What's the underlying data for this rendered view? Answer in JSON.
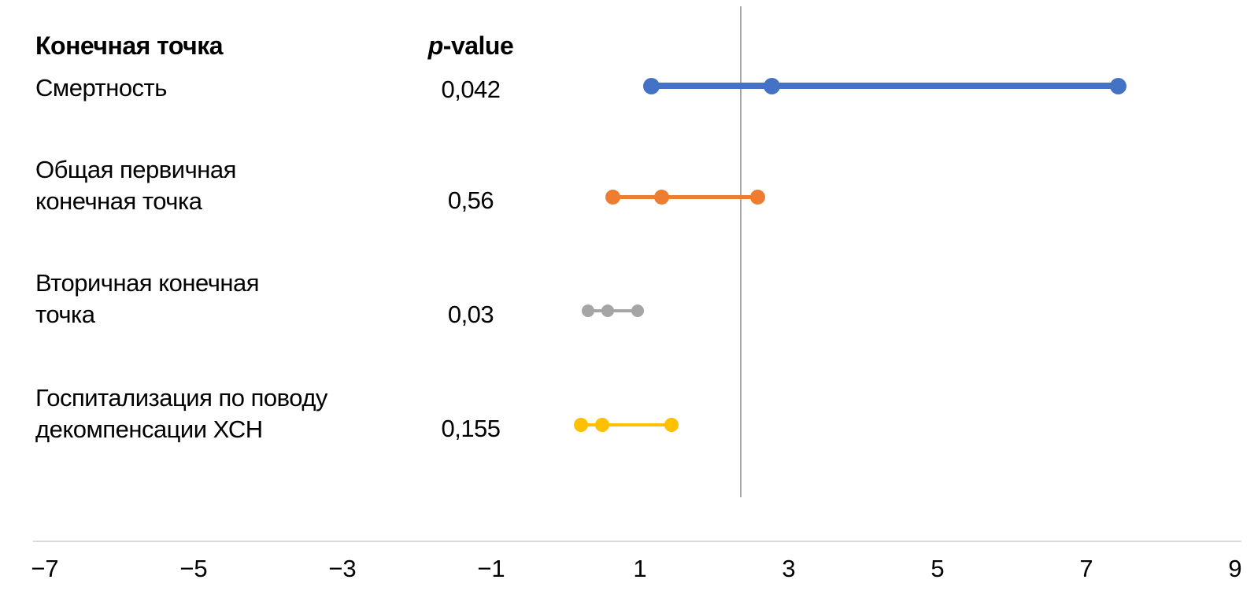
{
  "table": {
    "header": {
      "endpoint_col": "Конечная точка",
      "p_col_italic": "p",
      "p_col_rest": "-value"
    },
    "rows": [
      {
        "label": "Смертность",
        "p_value": "0,042"
      },
      {
        "label": "Общая первичная\nконечная точка",
        "p_value": "0,56"
      },
      {
        "label": "Вторичная конечная\nточка",
        "p_value": "0,03"
      },
      {
        "label": "Госпитализация по поводу\nдекомпенсации ХСН",
        "p_value": "0,155"
      }
    ]
  },
  "chart_data": {
    "type": "scatter",
    "subtype": "forest-plot-horizontal",
    "title": "",
    "xlabel": "",
    "ylabel": "",
    "grid": false,
    "legend": false,
    "x_axis": {
      "range": [
        -7.2,
        9.2
      ],
      "ticks": [
        -7,
        -5,
        -3,
        -1,
        1,
        3,
        5,
        7,
        9
      ],
      "tick_labels": [
        "−7",
        "−5",
        "−3",
        "−1",
        "1",
        "3",
        "5",
        "7",
        "9"
      ]
    },
    "reference_line": {
      "x_value": 2.35,
      "color": "#A6A6A6"
    },
    "axis_line_color": "#D9D9D9",
    "text_color": "#000000",
    "series": [
      {
        "name": "Смертность",
        "p_value": "0,042",
        "color": "#4472C4",
        "ci_low": 1.15,
        "estimate": 2.77,
        "ci_high": 7.43
      },
      {
        "name": "Общая первичная конечная точка",
        "p_value": "0,56",
        "color": "#ED7D31",
        "ci_low": 0.64,
        "estimate": 1.29,
        "ci_high": 2.58
      },
      {
        "name": "Вторичная конечная точка",
        "p_value": "0,03",
        "color": "#A5A5A5",
        "ci_low": 0.3,
        "estimate": 0.57,
        "ci_high": 0.97
      },
      {
        "name": "Госпитализация по поводу декомпенсации ХСН",
        "p_value": "0,155",
        "color": "#FFC000",
        "ci_low": 0.21,
        "estimate": 0.49,
        "ci_high": 1.42
      }
    ]
  }
}
